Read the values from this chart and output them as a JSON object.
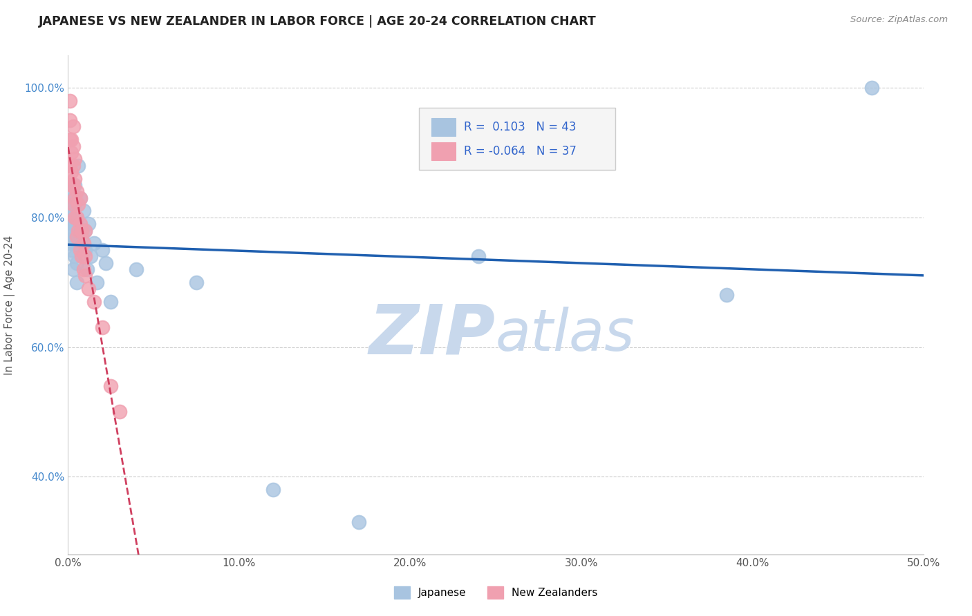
{
  "title": "JAPANESE VS NEW ZEALANDER IN LABOR FORCE | AGE 20-24 CORRELATION CHART",
  "source": "Source: ZipAtlas.com",
  "ylabel": "In Labor Force | Age 20-24",
  "xlim": [
    0.0,
    0.5
  ],
  "ylim": [
    0.28,
    1.05
  ],
  "xtick_labels": [
    "0.0%",
    "10.0%",
    "20.0%",
    "30.0%",
    "40.0%",
    "50.0%"
  ],
  "xtick_values": [
    0.0,
    0.1,
    0.2,
    0.3,
    0.4,
    0.5
  ],
  "ytick_labels": [
    "40.0%",
    "60.0%",
    "80.0%",
    "100.0%"
  ],
  "ytick_values": [
    0.4,
    0.6,
    0.8,
    1.0
  ],
  "R_japanese": 0.103,
  "N_japanese": 43,
  "R_nz": -0.064,
  "N_nz": 37,
  "japanese_color": "#a8c4e0",
  "nz_color": "#f0a0b0",
  "japanese_line_color": "#2060b0",
  "nz_line_color": "#d04060",
  "watermark_zip": "ZIP",
  "watermark_atlas": "atlas",
  "watermark_color": "#c8d8ec",
  "background_color": "#ffffff",
  "japanese_x": [
    0.001,
    0.001,
    0.001,
    0.002,
    0.002,
    0.002,
    0.002,
    0.002,
    0.003,
    0.003,
    0.003,
    0.003,
    0.003,
    0.004,
    0.004,
    0.004,
    0.004,
    0.004,
    0.005,
    0.005,
    0.005,
    0.005,
    0.006,
    0.007,
    0.008,
    0.009,
    0.01,
    0.01,
    0.011,
    0.012,
    0.013,
    0.015,
    0.017,
    0.02,
    0.022,
    0.025,
    0.04,
    0.075,
    0.12,
    0.17,
    0.24,
    0.385,
    0.47
  ],
  "japanese_y": [
    0.76,
    0.8,
    0.82,
    0.75,
    0.78,
    0.79,
    0.81,
    0.84,
    0.72,
    0.76,
    0.78,
    0.8,
    0.83,
    0.74,
    0.77,
    0.79,
    0.82,
    0.85,
    0.7,
    0.73,
    0.76,
    0.8,
    0.88,
    0.83,
    0.77,
    0.81,
    0.75,
    0.78,
    0.72,
    0.79,
    0.74,
    0.76,
    0.7,
    0.75,
    0.73,
    0.67,
    0.72,
    0.7,
    0.38,
    0.33,
    0.74,
    0.68,
    1.0
  ],
  "nz_x": [
    0.001,
    0.001,
    0.001,
    0.001,
    0.002,
    0.002,
    0.002,
    0.002,
    0.003,
    0.003,
    0.003,
    0.003,
    0.003,
    0.004,
    0.004,
    0.004,
    0.004,
    0.005,
    0.005,
    0.005,
    0.006,
    0.006,
    0.007,
    0.007,
    0.007,
    0.008,
    0.008,
    0.009,
    0.009,
    0.01,
    0.01,
    0.01,
    0.012,
    0.015,
    0.02,
    0.025,
    0.03
  ],
  "nz_y": [
    0.95,
    0.98,
    0.92,
    0.88,
    0.9,
    0.85,
    0.87,
    0.92,
    0.82,
    0.85,
    0.88,
    0.91,
    0.94,
    0.8,
    0.83,
    0.86,
    0.89,
    0.77,
    0.8,
    0.84,
    0.78,
    0.82,
    0.75,
    0.79,
    0.83,
    0.74,
    0.78,
    0.72,
    0.76,
    0.71,
    0.74,
    0.78,
    0.69,
    0.67,
    0.63,
    0.54,
    0.5
  ]
}
